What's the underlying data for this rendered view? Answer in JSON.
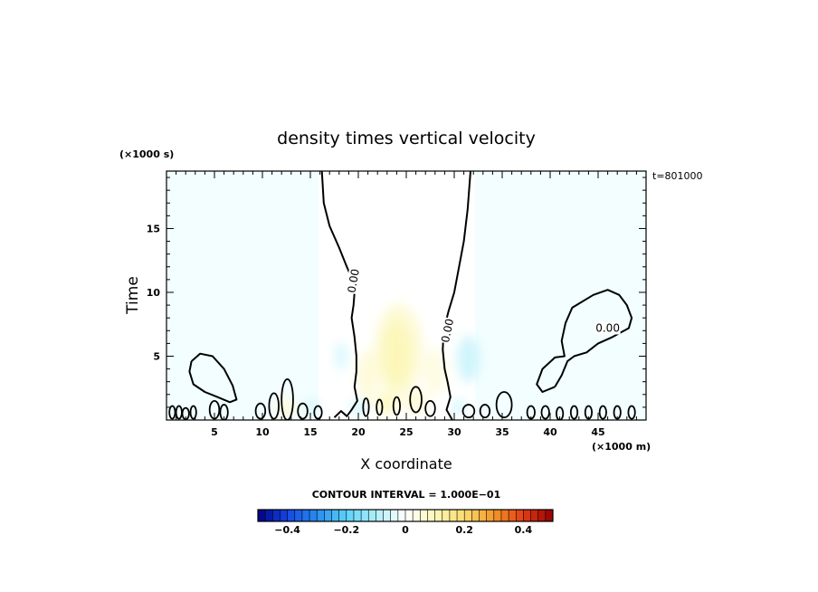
{
  "chart_data": {
    "type": "heatmap",
    "title": "density times vertical velocity",
    "xlabel": "X coordinate",
    "ylabel": "Time",
    "x_units": "(×1000 m)",
    "y_units": "(×1000 s)",
    "time_stamp": "t=801000",
    "xlim": [
      0,
      50
    ],
    "ylim": [
      0,
      19.5
    ],
    "x_ticks": [
      5,
      10,
      15,
      20,
      25,
      30,
      35,
      40,
      45
    ],
    "x_tick_labels": [
      "5",
      "10",
      "15",
      "20",
      "25",
      "30",
      "35",
      "40",
      "45"
    ],
    "y_ticks": [
      5,
      10,
      15
    ],
    "y_tick_labels": [
      "5",
      "10",
      "15"
    ],
    "contour_interval_text": "CONTOUR INTERVAL = 1.000E−01",
    "contour_label": "0.00",
    "colorbar": {
      "range": [
        -0.5,
        0.5
      ],
      "ticks": [
        -0.4,
        -0.2,
        0,
        0.2,
        0.4
      ],
      "tick_labels": [
        "−0.4",
        "−0.2",
        "0",
        "0.2",
        "0.4"
      ]
    },
    "field_blobs": [
      {
        "x": 24.2,
        "y": 5.5,
        "rx": 2.5,
        "ry": 3.6,
        "value": 0.06
      },
      {
        "x": 24.0,
        "y": 5.2,
        "rx": 1.5,
        "ry": 2.6,
        "value": 0.1
      },
      {
        "x": 21.0,
        "y": 3.5,
        "rx": 1.2,
        "ry": 2.0,
        "value": 0.05
      },
      {
        "x": 28.0,
        "y": 3.8,
        "rx": 1.3,
        "ry": 1.8,
        "value": 0.04
      },
      {
        "x": 31.5,
        "y": 4.8,
        "rx": 1.2,
        "ry": 1.8,
        "value": -0.06
      },
      {
        "x": 18.2,
        "y": 5.0,
        "rx": 0.6,
        "ry": 1.1,
        "value": -0.05
      },
      {
        "x": 12.5,
        "y": 0.9,
        "rx": 1.0,
        "ry": 0.8,
        "value": 0.05
      },
      {
        "x": 15.2,
        "y": 1.0,
        "rx": 0.8,
        "ry": 0.6,
        "value": -0.05
      },
      {
        "x": 23.0,
        "y": 1.3,
        "rx": 1.3,
        "ry": 0.9,
        "value": 0.08
      },
      {
        "x": 26.0,
        "y": 1.4,
        "rx": 1.2,
        "ry": 0.9,
        "value": 0.06
      },
      {
        "x": 20.0,
        "y": 1.0,
        "rx": 0.8,
        "ry": 0.6,
        "value": -0.06
      },
      {
        "x": 30.5,
        "y": 1.0,
        "rx": 0.8,
        "ry": 0.6,
        "value": -0.05
      }
    ],
    "zero_contours": [
      [
        [
          16.2,
          19.5
        ],
        [
          16.4,
          17.0
        ],
        [
          17.0,
          15.2
        ],
        [
          18.0,
          13.5
        ],
        [
          18.8,
          12.0
        ],
        [
          19.4,
          11.0
        ],
        [
          19.6,
          10.0
        ],
        [
          19.5,
          9.0
        ],
        [
          19.3,
          8.0
        ],
        [
          19.6,
          6.5
        ],
        [
          19.8,
          5.0
        ],
        [
          19.8,
          3.8
        ],
        [
          19.6,
          2.6
        ],
        [
          19.9,
          1.5
        ],
        [
          19.3,
          0.8
        ],
        [
          18.8,
          0.3
        ],
        [
          18.2,
          0.7
        ],
        [
          17.5,
          0.2
        ]
      ],
      [
        [
          31.7,
          19.5
        ],
        [
          31.4,
          16.5
        ],
        [
          31.0,
          14.0
        ],
        [
          30.5,
          12.0
        ],
        [
          30.0,
          10.0
        ],
        [
          29.4,
          8.5
        ],
        [
          28.9,
          7.0
        ],
        [
          28.8,
          5.5
        ],
        [
          29.0,
          4.0
        ],
        [
          29.3,
          3.0
        ],
        [
          29.6,
          1.8
        ],
        [
          29.2,
          0.8
        ],
        [
          29.8,
          0.0
        ]
      ],
      [
        [
          2.6,
          4.6
        ],
        [
          3.5,
          5.2
        ],
        [
          4.8,
          5.0
        ],
        [
          6.0,
          4.0
        ],
        [
          6.9,
          2.7
        ],
        [
          7.3,
          1.6
        ],
        [
          6.6,
          1.4
        ],
        [
          5.3,
          1.8
        ],
        [
          4.0,
          2.2
        ],
        [
          2.8,
          2.8
        ],
        [
          2.4,
          3.8
        ],
        [
          2.6,
          4.6
        ]
      ],
      [
        [
          40.5,
          2.6
        ],
        [
          39.2,
          2.2
        ],
        [
          38.6,
          2.8
        ],
        [
          39.2,
          4.0
        ],
        [
          40.5,
          4.9
        ],
        [
          41.5,
          5.0
        ],
        [
          41.2,
          6.2
        ],
        [
          41.6,
          7.6
        ],
        [
          42.3,
          8.8
        ],
        [
          44.5,
          9.8
        ],
        [
          46.0,
          10.2
        ],
        [
          47.2,
          9.8
        ],
        [
          48.0,
          9.0
        ],
        [
          48.5,
          8.0
        ],
        [
          48.2,
          7.2
        ],
        [
          46.5,
          6.5
        ],
        [
          45.0,
          6.0
        ],
        [
          43.8,
          5.3
        ],
        [
          42.5,
          5.0
        ],
        [
          41.8,
          4.6
        ],
        [
          41.2,
          3.5
        ],
        [
          40.5,
          2.6
        ]
      ]
    ],
    "small_contours": [
      {
        "x": 0.6,
        "y": 0.6,
        "rx": 0.3,
        "ry": 0.5
      },
      {
        "x": 1.3,
        "y": 0.6,
        "rx": 0.3,
        "ry": 0.5
      },
      {
        "x": 2.0,
        "y": 0.5,
        "rx": 0.35,
        "ry": 0.45
      },
      {
        "x": 2.8,
        "y": 0.6,
        "rx": 0.3,
        "ry": 0.5
      },
      {
        "x": 5.0,
        "y": 0.8,
        "rx": 0.5,
        "ry": 0.7
      },
      {
        "x": 6.0,
        "y": 0.6,
        "rx": 0.4,
        "ry": 0.6
      },
      {
        "x": 9.8,
        "y": 0.7,
        "rx": 0.5,
        "ry": 0.6
      },
      {
        "x": 11.2,
        "y": 1.1,
        "rx": 0.5,
        "ry": 1.0
      },
      {
        "x": 12.6,
        "y": 1.6,
        "rx": 0.6,
        "ry": 1.6
      },
      {
        "x": 14.2,
        "y": 0.7,
        "rx": 0.5,
        "ry": 0.6
      },
      {
        "x": 15.8,
        "y": 0.6,
        "rx": 0.4,
        "ry": 0.5
      },
      {
        "x": 20.8,
        "y": 1.0,
        "rx": 0.3,
        "ry": 0.7
      },
      {
        "x": 22.2,
        "y": 1.0,
        "rx": 0.3,
        "ry": 0.6
      },
      {
        "x": 24.0,
        "y": 1.1,
        "rx": 0.35,
        "ry": 0.7
      },
      {
        "x": 26.0,
        "y": 1.6,
        "rx": 0.6,
        "ry": 1.0
      },
      {
        "x": 27.5,
        "y": 0.9,
        "rx": 0.5,
        "ry": 0.6
      },
      {
        "x": 31.5,
        "y": 0.7,
        "rx": 0.6,
        "ry": 0.5
      },
      {
        "x": 33.2,
        "y": 0.7,
        "rx": 0.5,
        "ry": 0.5
      },
      {
        "x": 35.2,
        "y": 1.2,
        "rx": 0.8,
        "ry": 1.0
      },
      {
        "x": 38.0,
        "y": 0.6,
        "rx": 0.4,
        "ry": 0.5
      },
      {
        "x": 39.5,
        "y": 0.6,
        "rx": 0.4,
        "ry": 0.5
      },
      {
        "x": 41.0,
        "y": 0.5,
        "rx": 0.35,
        "ry": 0.5
      },
      {
        "x": 42.5,
        "y": 0.6,
        "rx": 0.35,
        "ry": 0.5
      },
      {
        "x": 44.0,
        "y": 0.6,
        "rx": 0.35,
        "ry": 0.5
      },
      {
        "x": 45.5,
        "y": 0.6,
        "rx": 0.35,
        "ry": 0.5
      },
      {
        "x": 47.0,
        "y": 0.6,
        "rx": 0.35,
        "ry": 0.5
      },
      {
        "x": 48.5,
        "y": 0.6,
        "rx": 0.35,
        "ry": 0.5
      }
    ]
  }
}
